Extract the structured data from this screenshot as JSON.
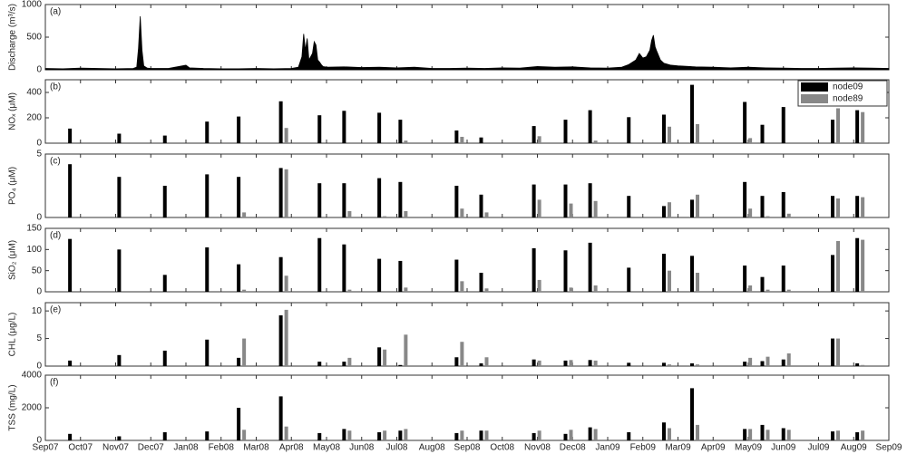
{
  "xaxis": {
    "xlim": [
      0,
      24
    ],
    "xticks": [
      {
        "value": 0,
        "label": "Sep07"
      },
      {
        "value": 1,
        "label": "Oct07"
      },
      {
        "value": 2,
        "label": "Nov07"
      },
      {
        "value": 3,
        "label": "Dec07"
      },
      {
        "value": 4,
        "label": "Jan08"
      },
      {
        "value": 5,
        "label": "Feb08"
      },
      {
        "value": 6,
        "label": "Mar08"
      },
      {
        "value": 7,
        "label": "Apr08"
      },
      {
        "value": 8,
        "label": "May08"
      },
      {
        "value": 9,
        "label": "Jun08"
      },
      {
        "value": 10,
        "label": "Jul08"
      },
      {
        "value": 11,
        "label": "Aug08"
      },
      {
        "value": 12,
        "label": "Sep08"
      },
      {
        "value": 13,
        "label": "Oct08"
      },
      {
        "value": 14,
        "label": "Nov08"
      },
      {
        "value": 15,
        "label": "Dec08"
      },
      {
        "value": 16,
        "label": "Jan09"
      },
      {
        "value": 17,
        "label": "Feb09"
      },
      {
        "value": 18,
        "label": "Mar09"
      },
      {
        "value": 19,
        "label": "Apr09"
      },
      {
        "value": 20,
        "label": "May09"
      },
      {
        "value": 21,
        "label": "Jun09"
      },
      {
        "value": 22,
        "label": "Jul09"
      },
      {
        "value": 23,
        "label": "Aug09"
      },
      {
        "value": 24,
        "label": "Sep09"
      }
    ]
  },
  "chart_data": [
    {
      "type": "area",
      "title": "(a)",
      "ylabel": "Discharge (m³/s)",
      "ylim": [
        0,
        1000
      ],
      "yticks": [
        0,
        500,
        1000
      ],
      "x": [
        0,
        0.5,
        1,
        1.5,
        2,
        2.5,
        2.6,
        2.65,
        2.7,
        2.75,
        2.8,
        2.9,
        3,
        3.5,
        3.9,
        4.0,
        4.1,
        4.5,
        5,
        5.5,
        6,
        6.5,
        7,
        7.2,
        7.3,
        7.35,
        7.4,
        7.45,
        7.5,
        7.6,
        7.65,
        7.7,
        7.75,
        7.8,
        7.85,
        7.9,
        8,
        8.5,
        9,
        9.5,
        10,
        10.5,
        11,
        11.5,
        12,
        12.5,
        13,
        13.5,
        14,
        14.5,
        15,
        15.5,
        16,
        16.4,
        16.6,
        16.8,
        16.9,
        17.0,
        17.1,
        17.2,
        17.25,
        17.3,
        17.35,
        17.4,
        17.5,
        17.6,
        17.8,
        18,
        18.5,
        19,
        19.5,
        20,
        20.5,
        21,
        21.5,
        22,
        22.5,
        23,
        23.5,
        24
      ],
      "series": [
        {
          "color": "#000000",
          "values": [
            20,
            15,
            25,
            20,
            15,
            20,
            40,
            330,
            820,
            300,
            60,
            25,
            20,
            20,
            60,
            70,
            30,
            20,
            15,
            15,
            20,
            15,
            20,
            40,
            200,
            550,
            300,
            480,
            150,
            250,
            430,
            380,
            150,
            120,
            80,
            50,
            40,
            45,
            35,
            40,
            30,
            40,
            20,
            20,
            25,
            20,
            30,
            25,
            50,
            40,
            45,
            30,
            25,
            40,
            80,
            150,
            250,
            180,
            200,
            300,
            450,
            530,
            350,
            280,
            150,
            100,
            70,
            60,
            45,
            40,
            30,
            40,
            30,
            25,
            20,
            20,
            25,
            30,
            25,
            20
          ]
        }
      ]
    },
    {
      "type": "bar",
      "title": "(b)",
      "ylabel": "NOₓ (μM)",
      "ylim": [
        0,
        500
      ],
      "yticks": [
        0,
        200,
        400
      ],
      "legend": "upper right",
      "x": [
        0.7,
        2.1,
        3.4,
        4.6,
        5.5,
        6.7,
        7.8,
        8.5,
        9.5,
        10.1,
        11.7,
        12.4,
        13.9,
        14.8,
        15.5,
        16.6,
        17.6,
        18.4,
        19.9,
        20.4,
        21.0,
        22.4,
        23.1
      ],
      "series": [
        {
          "name": "node09",
          "color": "#000000",
          "values": [
            115,
            75,
            60,
            170,
            210,
            330,
            220,
            255,
            240,
            185,
            100,
            45,
            135,
            185,
            260,
            205,
            225,
            460,
            325,
            145,
            285,
            185,
            260
          ]
        },
        {
          "name": "node89",
          "color": "#888888",
          "values": [
            0,
            0,
            0,
            0,
            0,
            120,
            0,
            0,
            0,
            20,
            50,
            0,
            55,
            0,
            20,
            0,
            130,
            150,
            40,
            0,
            0,
            275,
            245
          ]
        }
      ]
    },
    {
      "type": "bar",
      "title": "(c)",
      "ylabel": "PO₄ (μM)",
      "ylim": [
        0,
        5
      ],
      "yticks": [
        0,
        5
      ],
      "x": [
        0.7,
        2.1,
        3.4,
        4.6,
        5.5,
        6.7,
        7.8,
        8.5,
        9.5,
        10.1,
        11.7,
        12.4,
        13.9,
        14.8,
        15.5,
        16.6,
        17.6,
        18.4,
        19.9,
        20.4,
        21.0,
        22.4,
        23.1
      ],
      "series": [
        {
          "name": "node09",
          "color": "#000000",
          "values": [
            4.2,
            3.2,
            2.5,
            3.4,
            3.2,
            3.9,
            2.7,
            2.7,
            3.1,
            2.8,
            2.5,
            1.8,
            2.6,
            2.6,
            2.7,
            1.7,
            0.9,
            1.4,
            2.8,
            1.7,
            2.0,
            1.7,
            1.7
          ]
        },
        {
          "name": "node89",
          "color": "#888888",
          "values": [
            0,
            0,
            0,
            0,
            0.4,
            3.8,
            0,
            0.5,
            0.1,
            0.5,
            0.7,
            0.4,
            1.4,
            1.1,
            1.3,
            0,
            1.2,
            1.8,
            0.7,
            0.1,
            0.3,
            1.5,
            1.6
          ]
        }
      ]
    },
    {
      "type": "bar",
      "title": "(d)",
      "ylabel": "SiO₂ (μM)",
      "ylim": [
        0,
        150
      ],
      "yticks": [
        0,
        50,
        100,
        150
      ],
      "x": [
        0.7,
        2.1,
        3.4,
        4.6,
        5.5,
        6.7,
        7.8,
        8.5,
        9.5,
        10.1,
        11.7,
        12.4,
        13.9,
        14.8,
        15.5,
        16.6,
        17.6,
        18.4,
        19.9,
        20.4,
        21.0,
        22.4,
        23.1
      ],
      "series": [
        {
          "name": "node09",
          "color": "#000000",
          "values": [
            125,
            100,
            40,
            105,
            65,
            82,
            127,
            112,
            78,
            73,
            76,
            45,
            103,
            98,
            116,
            57,
            90,
            85,
            62,
            35,
            62,
            87,
            127
          ]
        },
        {
          "name": "node89",
          "color": "#888888",
          "values": [
            0,
            0,
            0,
            0,
            5,
            38,
            0,
            5,
            0,
            10,
            25,
            8,
            28,
            10,
            15,
            0,
            50,
            45,
            15,
            5,
            5,
            120,
            123
          ]
        }
      ]
    },
    {
      "type": "bar",
      "title": "(e)",
      "ylabel": "CHL (μg/L)",
      "ylim": [
        0,
        11.5
      ],
      "yticks": [
        0,
        5,
        10
      ],
      "x": [
        0.7,
        2.1,
        3.4,
        4.6,
        5.5,
        6.7,
        7.8,
        8.5,
        9.5,
        10.1,
        11.7,
        12.4,
        13.9,
        14.8,
        15.5,
        16.6,
        17.6,
        18.4,
        19.9,
        20.4,
        21.0,
        22.4,
        23.1
      ],
      "series": [
        {
          "name": "node09",
          "color": "#000000",
          "values": [
            1.0,
            2.0,
            2.8,
            4.8,
            1.5,
            9.2,
            0.8,
            0.8,
            3.4,
            0.2,
            1.6,
            0.5,
            1.2,
            1.0,
            1.1,
            0.6,
            0.6,
            0.5,
            0.8,
            0.9,
            1.2,
            5.0,
            0.5
          ]
        },
        {
          "name": "node89",
          "color": "#888888",
          "values": [
            0,
            0,
            0,
            0,
            5.0,
            10.2,
            0,
            1.5,
            3.0,
            5.7,
            4.4,
            1.6,
            1.0,
            1.1,
            1.0,
            0,
            0.3,
            0.3,
            1.5,
            1.7,
            2.3,
            5.0,
            0.2
          ]
        }
      ]
    },
    {
      "type": "bar",
      "title": "(f)",
      "ylabel": "TSS (mg/L)",
      "ylim": [
        0,
        4000
      ],
      "yticks": [
        0,
        2000,
        4000
      ],
      "x": [
        0.7,
        2.1,
        3.4,
        4.6,
        5.5,
        6.7,
        7.8,
        8.5,
        9.5,
        10.1,
        11.7,
        12.4,
        13.9,
        14.8,
        15.5,
        16.6,
        17.6,
        18.4,
        19.9,
        20.4,
        21.0,
        22.4,
        23.1
      ],
      "series": [
        {
          "name": "node09",
          "color": "#000000",
          "values": [
            400,
            250,
            500,
            550,
            2000,
            2700,
            450,
            700,
            500,
            600,
            450,
            600,
            450,
            400,
            800,
            500,
            1100,
            3200,
            700,
            950,
            750,
            550,
            500
          ]
        },
        {
          "name": "node89",
          "color": "#888888",
          "values": [
            0,
            0,
            0,
            0,
            650,
            850,
            0,
            600,
            600,
            700,
            600,
            600,
            600,
            650,
            700,
            0,
            750,
            950,
            700,
            650,
            650,
            600,
            600
          ]
        }
      ]
    }
  ]
}
